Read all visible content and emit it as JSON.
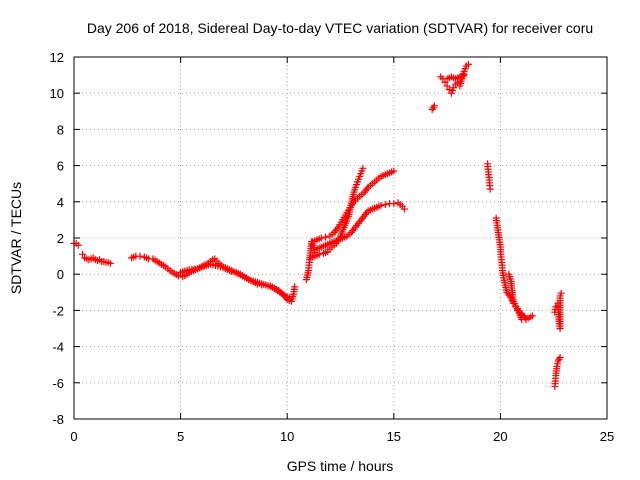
{
  "chart_data": {
    "type": "scatter",
    "title": "Day 206 of 2018, Sidereal Day-to-day VTEC variation (SDTVAR) for receiver coru",
    "xlabel": "GPS time / hours",
    "ylabel": "SDTVAR / TECUs",
    "xlim": [
      0,
      25
    ],
    "ylim": [
      -8,
      12
    ],
    "xticks": [
      "0",
      "5",
      "10",
      "15",
      "20",
      "25"
    ],
    "yticks": [
      "-8",
      "-6",
      "-4",
      "-2",
      "0",
      "2",
      "4",
      "6",
      "8",
      "10",
      "12"
    ],
    "grid": true,
    "marker": "+",
    "marker_color": "#ff0000",
    "series": [
      {
        "name": "SDTVAR",
        "segments": [
          [
            [
              0.0,
              1.7
            ],
            [
              0.1,
              1.7
            ],
            [
              0.2,
              1.6
            ]
          ],
          [
            [
              0.4,
              1.1
            ],
            [
              0.5,
              0.9
            ],
            [
              0.6,
              0.85
            ],
            [
              0.7,
              0.8
            ],
            [
              0.8,
              0.85
            ],
            [
              0.9,
              0.9
            ],
            [
              1.0,
              0.8
            ],
            [
              1.1,
              0.75
            ],
            [
              1.2,
              0.8
            ],
            [
              1.3,
              0.7
            ],
            [
              1.4,
              0.7
            ],
            [
              1.5,
              0.65
            ],
            [
              1.6,
              0.65
            ],
            [
              1.7,
              0.6
            ]
          ],
          [
            [
              2.7,
              0.9
            ],
            [
              2.9,
              1.0
            ],
            [
              3.1,
              1.0
            ],
            [
              3.3,
              0.95
            ],
            [
              3.5,
              0.85
            ],
            [
              3.7,
              0.85
            ],
            [
              3.9,
              0.7
            ],
            [
              4.1,
              0.55
            ],
            [
              4.3,
              0.4
            ],
            [
              4.5,
              0.2
            ],
            [
              4.7,
              0.05
            ],
            [
              4.9,
              -0.1
            ],
            [
              5.1,
              -0.15
            ],
            [
              5.3,
              0.0
            ],
            [
              5.5,
              0.15
            ],
            [
              5.7,
              0.25
            ],
            [
              5.9,
              0.35
            ],
            [
              6.1,
              0.5
            ],
            [
              6.3,
              0.6
            ],
            [
              6.5,
              0.8
            ],
            [
              6.6,
              0.85
            ],
            [
              6.8,
              0.6
            ],
            [
              7.0,
              0.4
            ],
            [
              7.2,
              0.25
            ],
            [
              7.4,
              0.15
            ],
            [
              7.6,
              0.1
            ],
            [
              7.8,
              0.0
            ],
            [
              8.0,
              -0.15
            ],
            [
              8.2,
              -0.3
            ],
            [
              8.4,
              -0.4
            ],
            [
              8.6,
              -0.55
            ],
            [
              8.8,
              -0.6
            ],
            [
              9.0,
              -0.6
            ],
            [
              9.2,
              -0.65
            ],
            [
              9.4,
              -0.8
            ],
            [
              9.6,
              -0.9
            ],
            [
              9.8,
              -1.1
            ],
            [
              10.0,
              -1.4
            ],
            [
              10.2,
              -1.5
            ],
            [
              10.3,
              -1.1
            ],
            [
              10.35,
              -0.7
            ]
          ],
          [
            [
              5.0,
              0.1
            ],
            [
              5.4,
              0.25
            ],
            [
              5.8,
              0.3
            ],
            [
              6.4,
              0.55
            ],
            [
              7.1,
              0.35
            ],
            [
              7.5,
              0.15
            ],
            [
              8.3,
              -0.35
            ],
            [
              9.3,
              -0.7
            ],
            [
              9.9,
              -1.2
            ],
            [
              10.1,
              -1.3
            ]
          ],
          [
            [
              10.9,
              -0.3
            ],
            [
              11.0,
              0.2
            ],
            [
              11.05,
              0.8
            ],
            [
              11.1,
              1.3
            ],
            [
              11.15,
              1.8
            ],
            [
              11.2,
              1.6
            ],
            [
              11.3,
              1.2
            ],
            [
              11.4,
              1.4
            ],
            [
              11.6,
              1.5
            ],
            [
              11.8,
              1.6
            ],
            [
              12.0,
              1.7
            ],
            [
              12.2,
              1.8
            ],
            [
              12.4,
              1.9
            ],
            [
              12.6,
              2.0
            ],
            [
              12.8,
              2.1
            ],
            [
              13.0,
              2.3
            ],
            [
              13.2,
              2.6
            ],
            [
              13.4,
              2.9
            ],
            [
              13.6,
              3.2
            ],
            [
              13.8,
              3.5
            ],
            [
              14.0,
              3.6
            ],
            [
              14.2,
              3.7
            ],
            [
              14.4,
              3.8
            ],
            [
              14.6,
              3.85
            ],
            [
              14.8,
              3.9
            ],
            [
              15.0,
              3.9
            ],
            [
              15.2,
              3.95
            ],
            [
              15.3,
              3.85
            ],
            [
              15.4,
              3.75
            ],
            [
              15.5,
              3.6
            ]
          ],
          [
            [
              11.1,
              0.9
            ],
            [
              11.3,
              1.0
            ],
            [
              11.5,
              1.1
            ],
            [
              11.7,
              1.15
            ],
            [
              11.9,
              1.25
            ],
            [
              12.1,
              1.5
            ],
            [
              12.3,
              1.7
            ],
            [
              12.5,
              2.1
            ],
            [
              12.7,
              2.7
            ],
            [
              12.9,
              3.3
            ],
            [
              13.0,
              3.8
            ],
            [
              13.1,
              4.4
            ],
            [
              13.2,
              4.8
            ],
            [
              13.3,
              5.1
            ],
            [
              13.4,
              5.4
            ],
            [
              13.5,
              5.7
            ],
            [
              13.55,
              5.85
            ]
          ],
          [
            [
              11.2,
              1.8
            ],
            [
              11.4,
              1.9
            ],
            [
              11.6,
              2.0
            ],
            [
              11.8,
              2.05
            ],
            [
              12.0,
              2.1
            ],
            [
              12.2,
              2.3
            ],
            [
              12.4,
              2.6
            ],
            [
              12.6,
              3.0
            ],
            [
              12.8,
              3.4
            ],
            [
              13.0,
              3.8
            ],
            [
              13.2,
              4.1
            ],
            [
              13.4,
              4.3
            ],
            [
              13.6,
              4.5
            ],
            [
              13.8,
              4.8
            ],
            [
              14.0,
              5.0
            ],
            [
              14.2,
              5.2
            ],
            [
              14.4,
              5.4
            ],
            [
              14.6,
              5.5
            ],
            [
              14.8,
              5.6
            ],
            [
              15.0,
              5.7
            ]
          ],
          [
            [
              16.8,
              9.1
            ],
            [
              16.85,
              9.2
            ],
            [
              16.9,
              9.3
            ]
          ],
          [
            [
              17.2,
              10.9
            ],
            [
              17.3,
              10.8
            ],
            [
              17.4,
              10.6
            ],
            [
              17.5,
              10.4
            ],
            [
              17.6,
              10.2
            ],
            [
              17.7,
              10.0
            ],
            [
              17.8,
              10.3
            ],
            [
              17.9,
              10.5
            ],
            [
              18.0,
              10.6
            ],
            [
              18.1,
              10.4
            ],
            [
              18.2,
              10.8
            ],
            [
              18.3,
              11.2
            ],
            [
              18.4,
              11.5
            ],
            [
              18.5,
              11.6
            ]
          ],
          [
            [
              17.5,
              10.8
            ],
            [
              17.7,
              10.9
            ],
            [
              17.9,
              10.8
            ],
            [
              18.1,
              10.9
            ],
            [
              18.3,
              11.0
            ]
          ],
          [
            [
              19.4,
              6.1
            ],
            [
              19.42,
              5.8
            ],
            [
              19.45,
              5.5
            ],
            [
              19.48,
              5.2
            ],
            [
              19.5,
              4.9
            ],
            [
              19.52,
              4.7
            ]
          ],
          [
            [
              19.8,
              3.1
            ],
            [
              19.85,
              2.7
            ],
            [
              19.9,
              2.3
            ],
            [
              19.95,
              1.9
            ],
            [
              20.0,
              1.5
            ],
            [
              20.02,
              1.1
            ],
            [
              20.05,
              0.8
            ],
            [
              20.08,
              0.5
            ],
            [
              20.1,
              0.2
            ],
            [
              20.15,
              -0.2
            ],
            [
              20.3,
              -1.0
            ],
            [
              20.5,
              -1.3
            ],
            [
              20.6,
              -1.6
            ],
            [
              20.7,
              -1.8
            ],
            [
              20.8,
              -2.0
            ],
            [
              20.9,
              -2.1
            ],
            [
              21.0,
              -2.2
            ],
            [
              21.1,
              -2.3
            ],
            [
              21.15,
              -2.4
            ],
            [
              21.2,
              -2.5
            ],
            [
              21.5,
              -2.3
            ]
          ],
          [
            [
              20.4,
              0.0
            ],
            [
              20.5,
              -0.4
            ],
            [
              20.6,
              -1.5
            ],
            [
              20.8,
              -1.9
            ],
            [
              21.0,
              -2.5
            ]
          ],
          [
            [
              22.55,
              -6.2
            ],
            [
              22.6,
              -5.6
            ],
            [
              22.65,
              -5.1
            ],
            [
              22.7,
              -4.8
            ],
            [
              22.75,
              -4.7
            ],
            [
              22.8,
              -4.6
            ]
          ],
          [
            [
              22.55,
              -2.1
            ],
            [
              22.6,
              -1.8
            ],
            [
              22.7,
              -1.6
            ],
            [
              22.75,
              -2.6
            ],
            [
              22.8,
              -3.0
            ],
            [
              22.8,
              -1.2
            ],
            [
              22.85,
              -1.05
            ]
          ]
        ]
      }
    ]
  }
}
